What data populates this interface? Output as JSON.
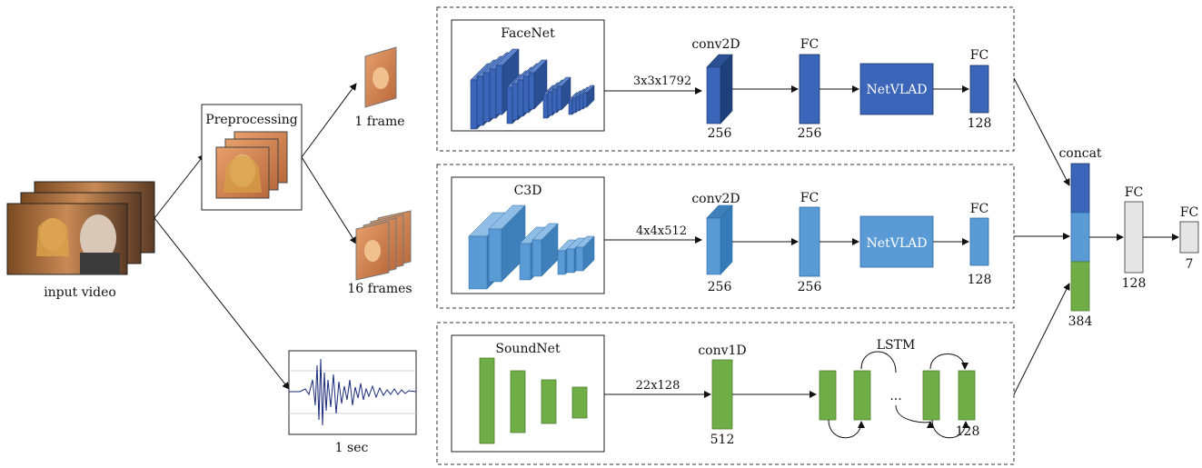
{
  "input": {
    "label": "input video",
    "preprocessing_label": "Preprocessing",
    "one_frame_label": "1 frame",
    "sixteen_frames_label": "16 frames",
    "audio_label": "1 sec"
  },
  "face_branch": {
    "cnn_label": "FaceNet",
    "feature_shape": "3x3x1792",
    "conv_label": "conv2D",
    "conv_size": "256",
    "fc1_label": "FC",
    "fc1_size": "256",
    "vlad_label": "NetVLAD",
    "fc2_label": "FC",
    "fc2_size": "128"
  },
  "c3d_branch": {
    "cnn_label": "C3D",
    "feature_shape": "4x4x512",
    "conv_label": "conv2D",
    "conv_size": "256",
    "fc1_label": "FC",
    "fc1_size": "256",
    "vlad_label": "NetVLAD",
    "fc2_label": "FC",
    "fc2_size": "128"
  },
  "sound_branch": {
    "cnn_label": "SoundNet",
    "feature_shape": "22x128",
    "conv_label": "conv1D",
    "conv_size": "512",
    "lstm_label": "LSTM",
    "lstm_ellipsis": "...",
    "lstm_size": "128"
  },
  "fusion": {
    "concat_label": "concat",
    "concat_size": "384",
    "fc1_label": "FC",
    "fc1_size": "128",
    "fc2_label": "FC",
    "fc2_size": "7"
  },
  "colors": {
    "face": "#3a65b8",
    "face_dark": "#2a4f93",
    "c3d": "#5b9bd5",
    "c3d_dark": "#3f7fba",
    "sound": "#70ad47",
    "fc_gray": "#e6e6e6"
  }
}
